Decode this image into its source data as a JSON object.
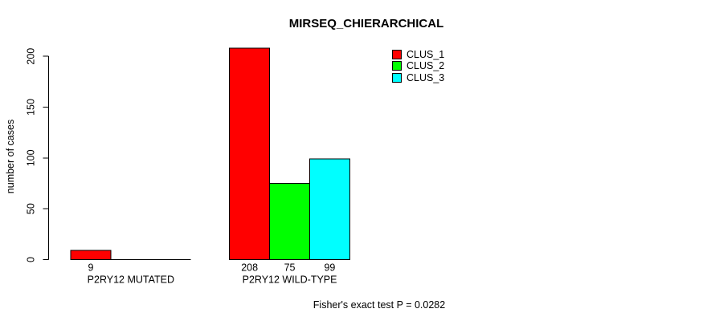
{
  "figure": {
    "title": "MIRSEQ_CHIERARCHICAL",
    "y_axis_label": "number of cases",
    "annotation": "Fisher's exact test P = 0.0282"
  },
  "legend": {
    "entries": [
      {
        "label": "CLUS_1",
        "color": "#ff0000"
      },
      {
        "label": "CLUS_2",
        "color": "#00ff00"
      },
      {
        "label": "CLUS_3",
        "color": "#00ffff"
      }
    ]
  },
  "chart_data": {
    "type": "bar",
    "title": "MIRSEQ_CHIERARCHICAL",
    "xlabel": "",
    "ylabel": "number of cases",
    "categories": [
      "P2RY12 MUTATED",
      "P2RY12 WILD-TYPE"
    ],
    "series": [
      {
        "name": "CLUS_1",
        "color": "#ff0000",
        "values": [
          9,
          208
        ]
      },
      {
        "name": "CLUS_2",
        "color": "#00ff00",
        "values": [
          0,
          75
        ]
      },
      {
        "name": "CLUS_3",
        "color": "#00ffff",
        "values": [
          0,
          99
        ]
      }
    ],
    "bar_value_labels": [
      [
        "9",
        null,
        null
      ],
      [
        "208",
        "75",
        "99"
      ]
    ],
    "yticks": [
      0,
      50,
      100,
      150,
      200
    ],
    "ylim": [
      0,
      208
    ],
    "grid": false,
    "legend_position": "top-right",
    "legend_box": false,
    "bar_border_color": "#000000",
    "annotation": "Fisher's exact test P = 0.0282"
  }
}
